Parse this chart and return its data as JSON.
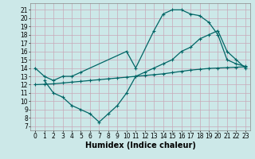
{
  "bg_color": "#cce8e8",
  "grid_color": "#aacccc",
  "line_color": "#006666",
  "line_width": 0.9,
  "marker": "+",
  "marker_size": 3.5,
  "xlim": [
    -0.5,
    23.5
  ],
  "ylim": [
    6.5,
    21.8
  ],
  "yticks": [
    7,
    8,
    9,
    10,
    11,
    12,
    13,
    14,
    15,
    16,
    17,
    18,
    19,
    20,
    21
  ],
  "xticks": [
    0,
    1,
    2,
    3,
    4,
    5,
    6,
    7,
    8,
    9,
    10,
    11,
    12,
    13,
    14,
    15,
    16,
    17,
    18,
    19,
    20,
    21,
    22,
    23
  ],
  "xlabel": "Humidex (Indice chaleur)",
  "xlabel_fontsize": 7,
  "tick_fontsize": 5.5,
  "line1_x": [
    0,
    1,
    2,
    3,
    4,
    5,
    10,
    11,
    13,
    14,
    15,
    16,
    17,
    18,
    19,
    20,
    21,
    22,
    23
  ],
  "line1_y": [
    14,
    13,
    12.5,
    13,
    13,
    13.5,
    16.0,
    14.0,
    18.5,
    20.5,
    21.0,
    21.0,
    20.5,
    20.3,
    19.5,
    18,
    15,
    14.5,
    14.2
  ],
  "line2_x": [
    0,
    1,
    2,
    3,
    4,
    5,
    6,
    7,
    8,
    9,
    10,
    11,
    12,
    13,
    14,
    15,
    16,
    17,
    18,
    19,
    20,
    21,
    22,
    23
  ],
  "line2_y": [
    12.0,
    12.05,
    12.1,
    12.2,
    12.3,
    12.4,
    12.5,
    12.6,
    12.7,
    12.8,
    12.9,
    13.0,
    13.1,
    13.2,
    13.3,
    13.45,
    13.6,
    13.75,
    13.85,
    13.95,
    14.0,
    14.05,
    14.1,
    14.15
  ],
  "line3_x": [
    1,
    2,
    3,
    4,
    5,
    6,
    7,
    8,
    9,
    10,
    11,
    12,
    13,
    14,
    15,
    16,
    17,
    18,
    19,
    20,
    21,
    22,
    23
  ],
  "line3_y": [
    12.5,
    11.0,
    10.5,
    9.5,
    9.0,
    8.5,
    7.5,
    8.5,
    9.5,
    11.0,
    13.0,
    13.5,
    14.0,
    14.5,
    15.0,
    16.0,
    16.5,
    17.5,
    18.0,
    18.5,
    16.0,
    15.0,
    14.0
  ]
}
